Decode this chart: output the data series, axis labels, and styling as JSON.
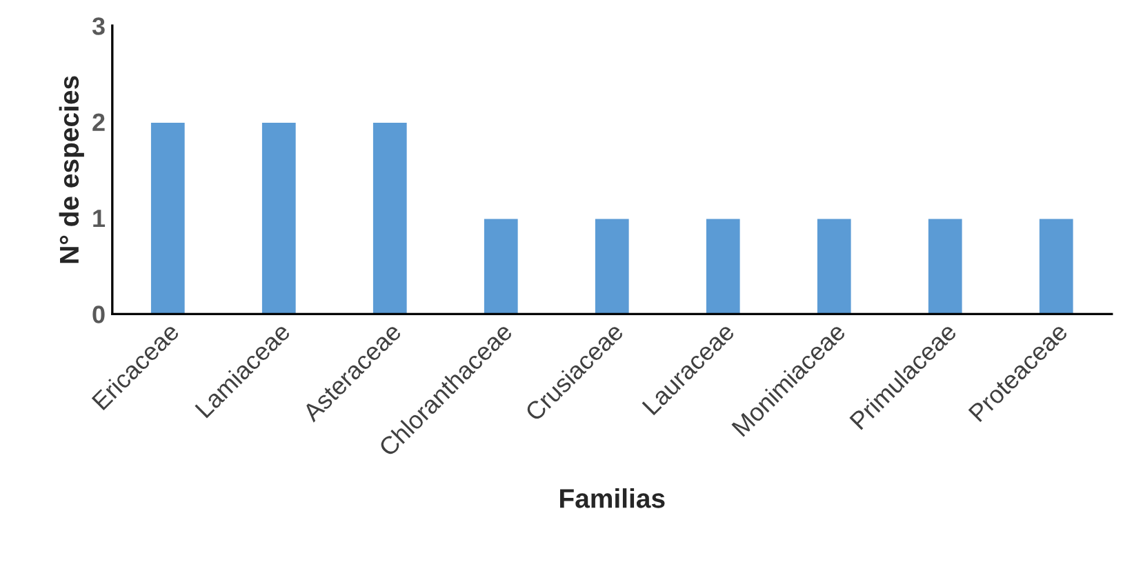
{
  "chart_data": {
    "type": "bar",
    "xlabel": "Familias",
    "ylabel": "N° de especies",
    "categories": [
      "Ericaceae",
      "Lamiaceae",
      "Asteraceae",
      "Chloranthaceae",
      "Crusiaceae",
      "Lauraceae",
      "Monimiaceae",
      "Primulaceae",
      "Proteaceae"
    ],
    "values": [
      2,
      2,
      2,
      1,
      1,
      1,
      1,
      1,
      1
    ],
    "color": "#5b9bd5",
    "ylim": [
      0,
      3
    ],
    "yticks": [
      0,
      1,
      2,
      3
    ],
    "grid": false,
    "legend": false
  }
}
